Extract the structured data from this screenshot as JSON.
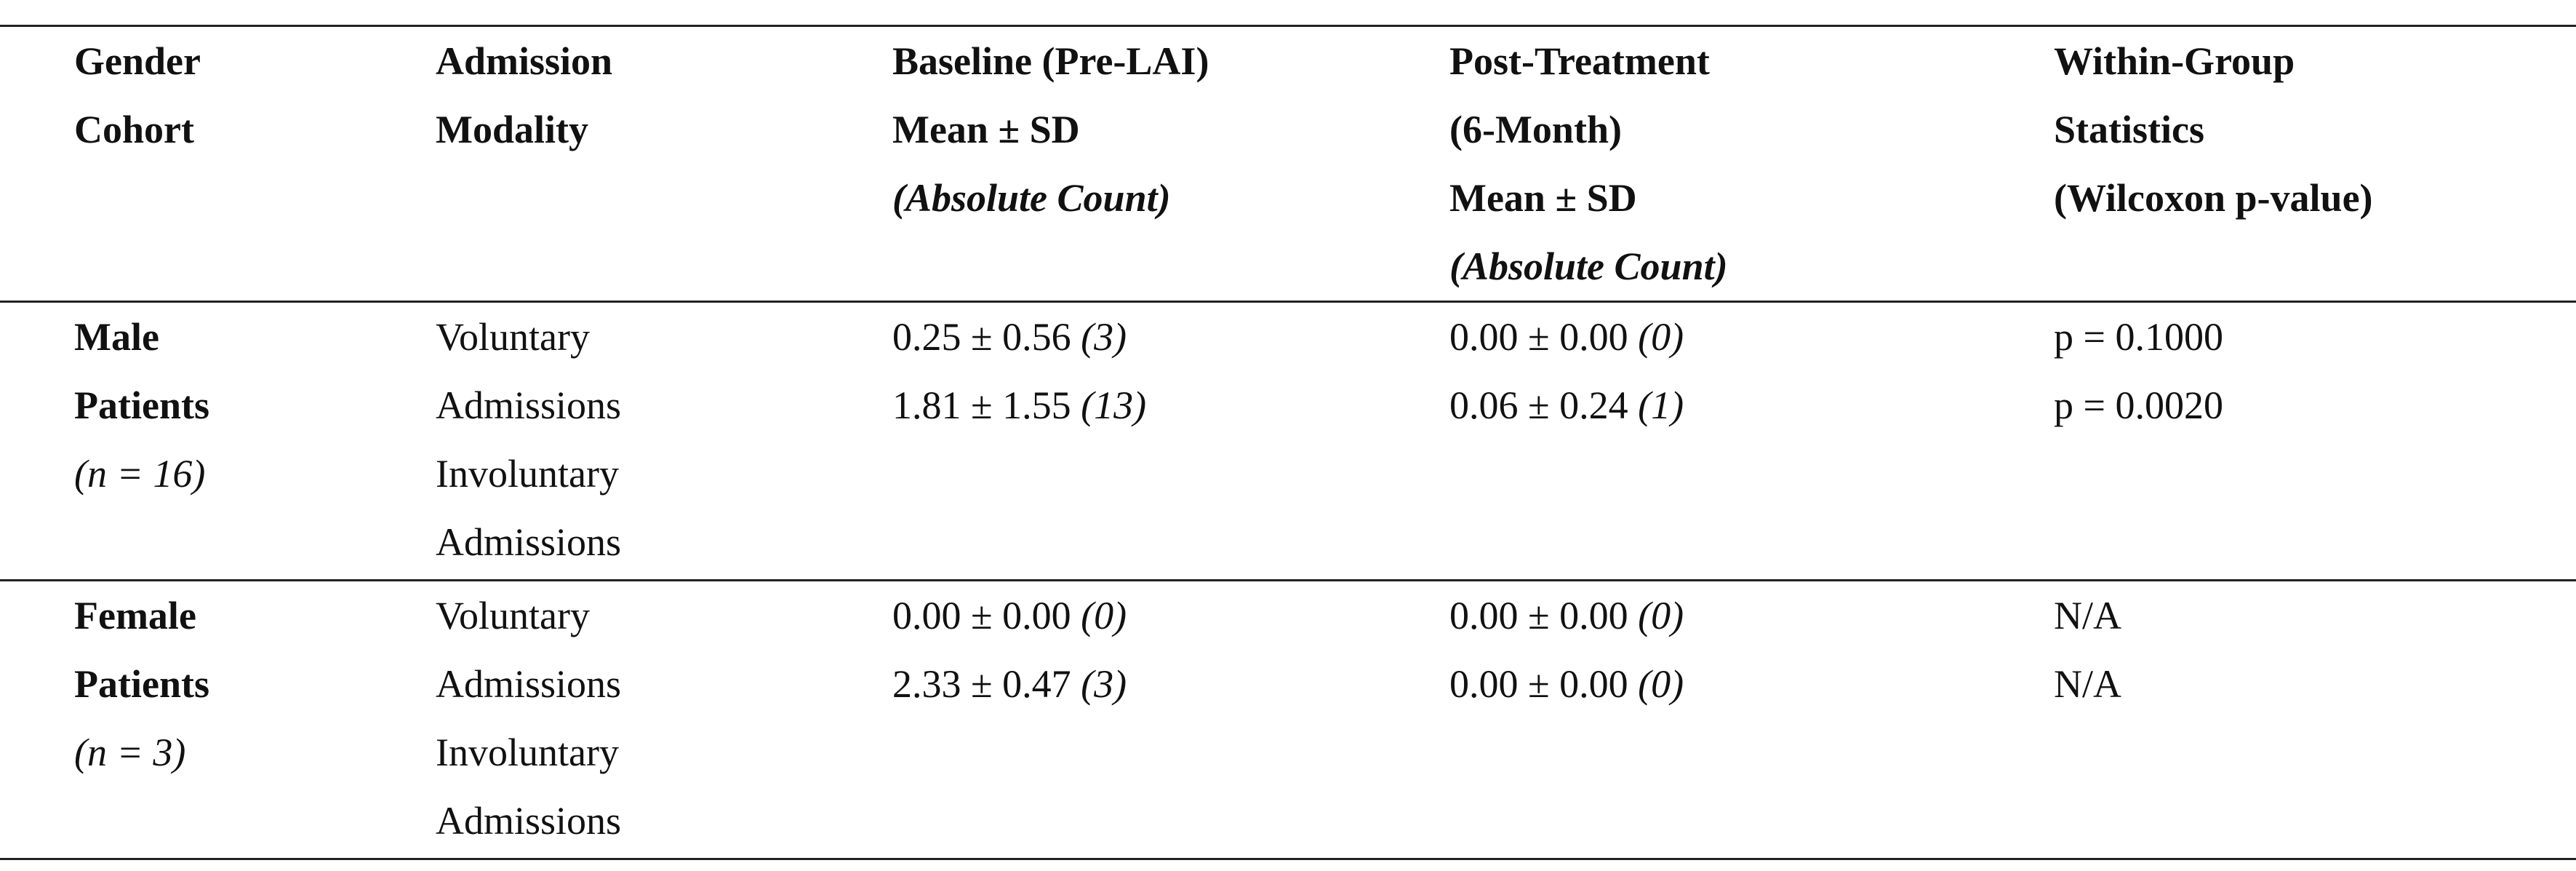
{
  "table": {
    "header": [
      [
        {
          "text": "Gender"
        },
        {
          "text": "Cohort"
        }
      ],
      [
        {
          "text": "Admission"
        },
        {
          "text": "Modality"
        }
      ],
      [
        {
          "text": "Baseline (Pre-LAI)"
        },
        {
          "text": "Mean ± SD"
        },
        {
          "text": "(Absolute Count)",
          "italic": true
        }
      ],
      [
        {
          "text": "Post-Treatment"
        },
        {
          "text": "(6-Month)"
        },
        {
          "text": "Mean ± SD"
        },
        {
          "text": "(Absolute Count)",
          "italic": true
        }
      ],
      [
        {
          "text": "Within-Group"
        },
        {
          "text": "Statistics"
        },
        {
          "text": "(Wilcoxon p-value)"
        }
      ]
    ],
    "groups": [
      {
        "cohort": [
          "Male",
          "Patients"
        ],
        "n": "(n = 16)",
        "rows": [
          {
            "modality": "Voluntary Admissions",
            "baseline": "0.25 ± 0.56",
            "baseline_count": "(3)",
            "post": "0.00 ± 0.00",
            "post_count": "(0)",
            "stat": "p = 0.1000"
          },
          {
            "modality": "Involuntary Admissions",
            "baseline": "1.81 ± 1.55",
            "baseline_count": "(13)",
            "post": "0.06 ± 0.24",
            "post_count": "(1)",
            "stat": "p = 0.0020"
          }
        ]
      },
      {
        "cohort": [
          "Female",
          "Patients"
        ],
        "n": "(n = 3)",
        "rows": [
          {
            "modality": "Voluntary Admissions",
            "baseline": "0.00 ± 0.00",
            "baseline_count": "(0)",
            "post": "0.00 ± 0.00",
            "post_count": "(0)",
            "stat": "N/A"
          },
          {
            "modality": "Involuntary Admissions",
            "baseline": "2.33 ± 0.47",
            "baseline_count": "(3)",
            "post": "0.00 ± 0.00",
            "post_count": "(0)",
            "stat": "N/A"
          }
        ]
      }
    ]
  }
}
